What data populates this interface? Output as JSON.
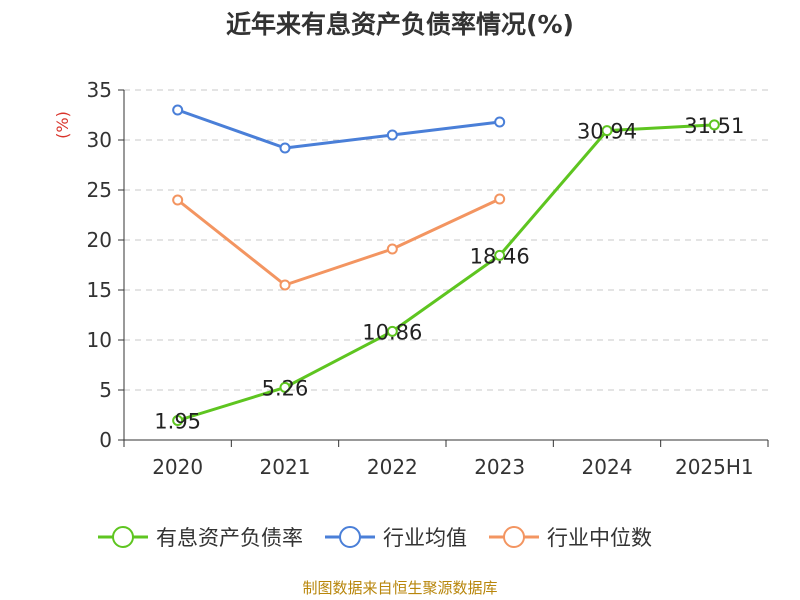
{
  "chart_data": {
    "type": "line",
    "title": "近年来有息资产负债率情况(%)",
    "ylabel": "(%)",
    "xlabel": "",
    "categories": [
      "2020",
      "2021",
      "2022",
      "2023",
      "2024",
      "2025H1"
    ],
    "ylim": [
      0,
      35
    ],
    "yticks": [
      0,
      5,
      10,
      15,
      20,
      25,
      30,
      35
    ],
    "grid": "horizontal-dashed",
    "legend_position": "bottom",
    "series": [
      {
        "name": "有息资产负债率",
        "color": "#5ec520",
        "values": [
          1.95,
          5.26,
          10.86,
          18.46,
          30.94,
          31.51
        ],
        "show_labels": true
      },
      {
        "name": "行业均值",
        "color": "#4a7fd8",
        "values": [
          33.0,
          29.2,
          30.5,
          31.8,
          null,
          null
        ],
        "show_labels": false
      },
      {
        "name": "行业中位数",
        "color": "#f39561",
        "values": [
          24.0,
          15.5,
          19.1,
          24.1,
          null,
          null
        ],
        "show_labels": false
      }
    ]
  },
  "source_text": "制图数据来自恒生聚源数据库"
}
